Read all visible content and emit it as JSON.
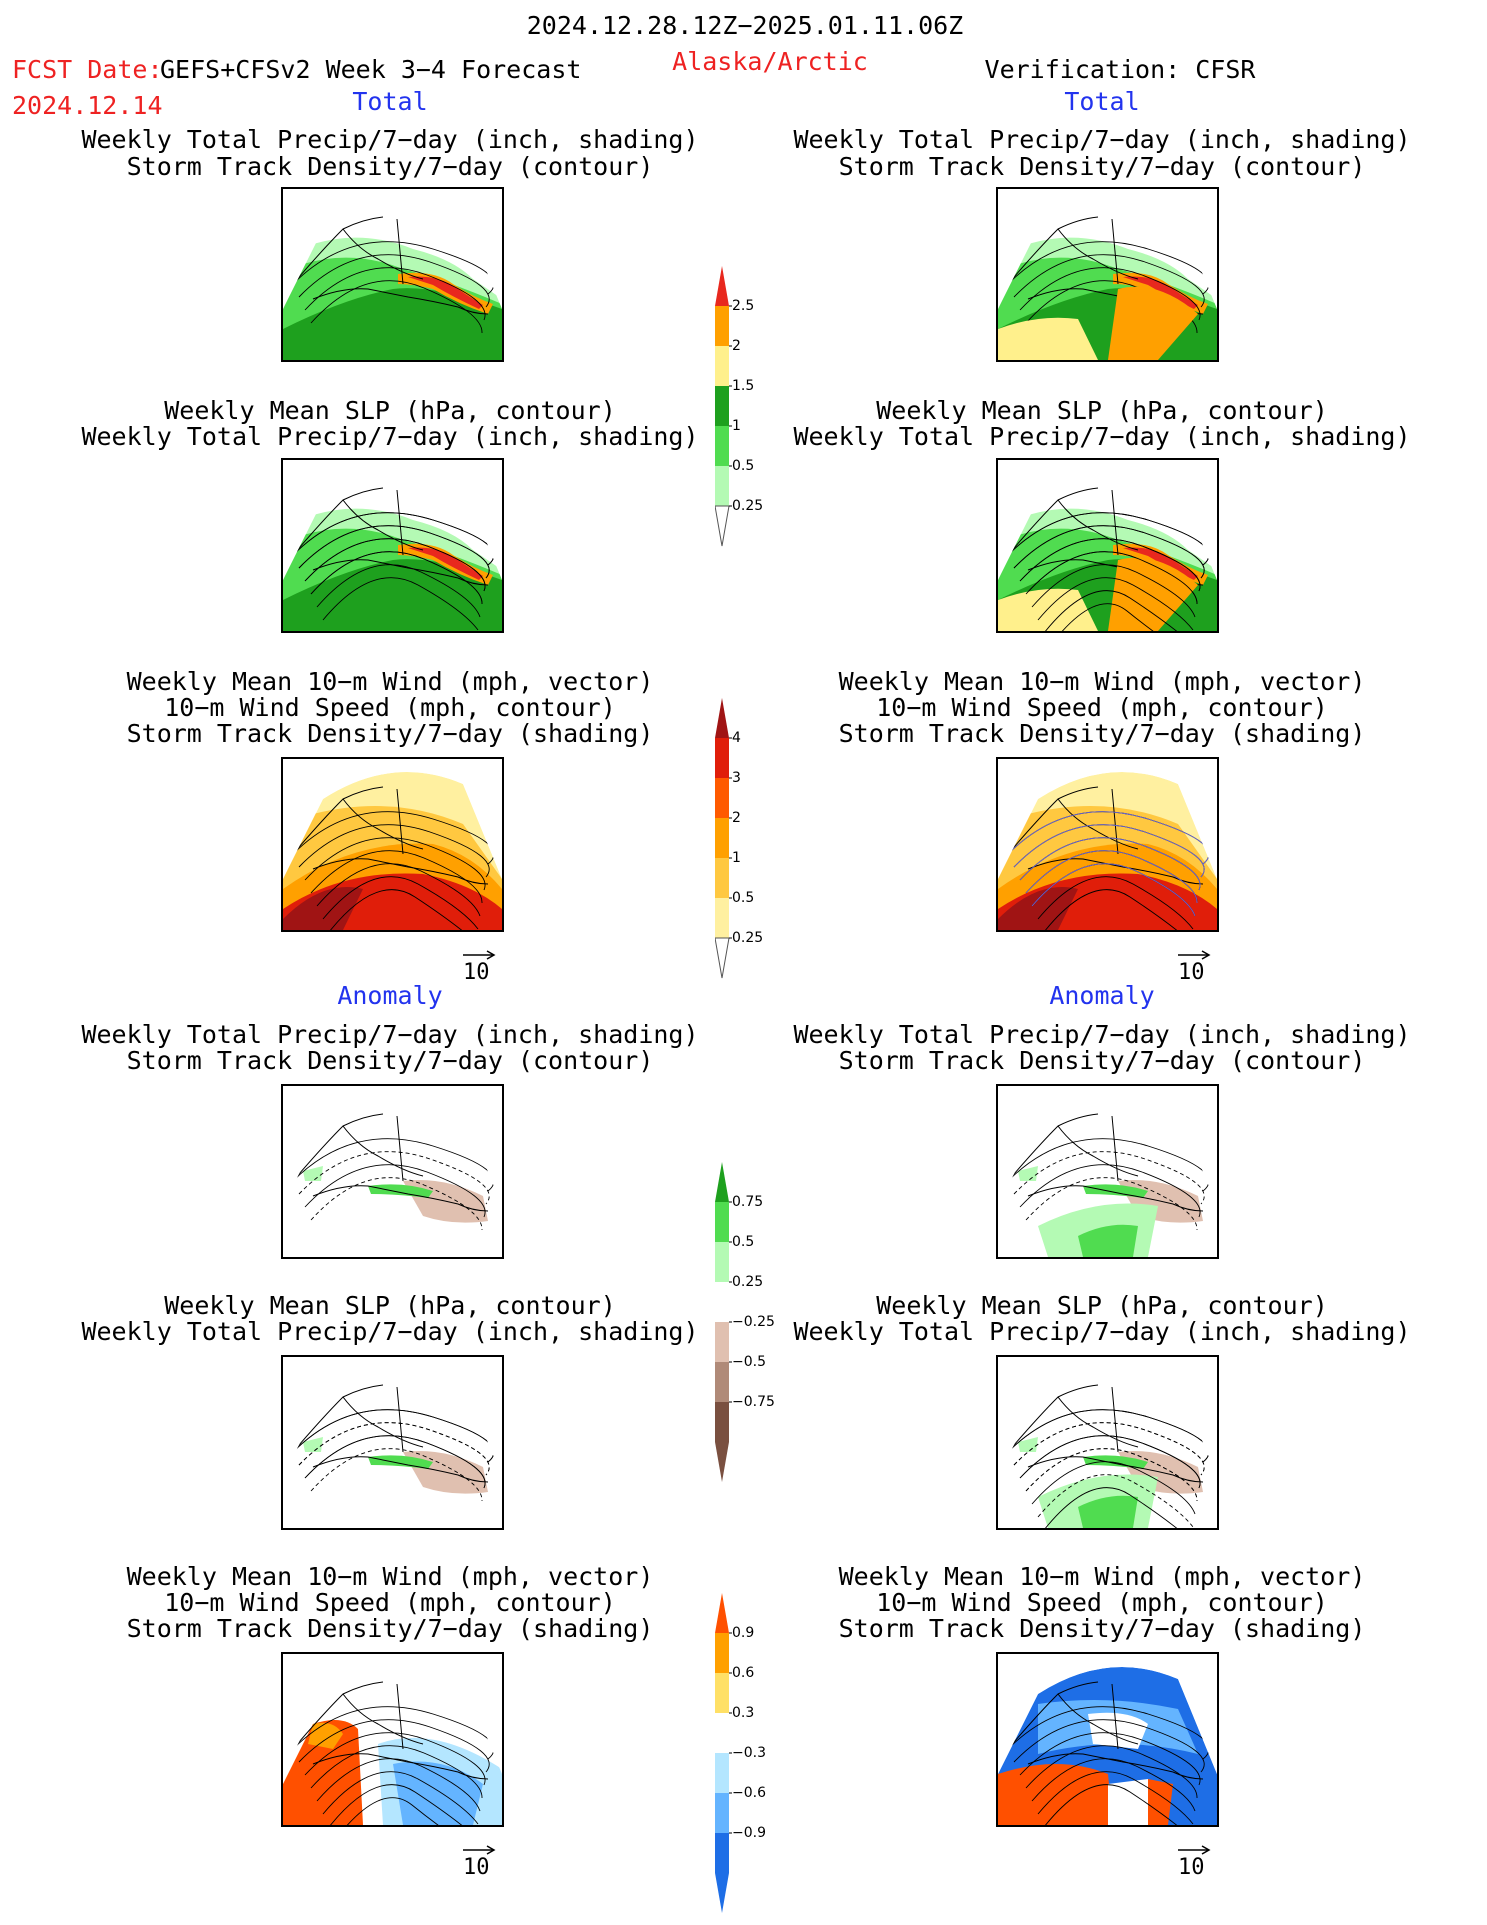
{
  "header": {
    "valid_period": "2024.12.28.12Z−2025.01.11.06Z",
    "fcst_label": "FCST Date:",
    "fcst_date": "2024.12.14",
    "model": "GEFS+CFSv2 Week 3−4 Forecast",
    "region": "Alaska/Arctic",
    "verification": "Verification: CFSR"
  },
  "sections": {
    "total": "Total",
    "anomaly": "Anomaly"
  },
  "titles": {
    "precip_storm": [
      "Weekly Total Precip/7−day (inch, shading)",
      "Storm Track Density/7−day (contour)"
    ],
    "slp_precip": [
      "Weekly Mean SLP (hPa, contour)",
      "Weekly Total Precip/7−day (inch, shading)"
    ],
    "wind_storm": [
      "Weekly Mean 10−m Wind (mph, vector)",
      "10−m Wind Speed (mph, contour)",
      "Storm Track Density/7−day (shading)"
    ]
  },
  "vector_ref": "10",
  "colorbars": {
    "precip_total": {
      "labels": [
        "2.5",
        "2",
        "1.5",
        "1",
        "0.5",
        "0.25"
      ],
      "colors": [
        "#e8281e",
        "#ffa000",
        "#fff08c",
        "#1ea01e",
        "#50dc50",
        "#b4fab4"
      ]
    },
    "storm_total": {
      "labels": [
        "4",
        "3",
        "2",
        "1",
        "0.5",
        "0.25"
      ],
      "colors": [
        "#a01414",
        "#e01e0a",
        "#ff5a00",
        "#ffa000",
        "#ffc840",
        "#fff0a0"
      ]
    },
    "precip_anom": {
      "labels": [
        "0.75",
        "0.5",
        "0.25",
        "−0.25",
        "−0.5",
        "−0.75"
      ],
      "colors": [
        "#1ea01e",
        "#50dc50",
        "#b4fab4",
        "#ffffff",
        "#e0c0b0",
        "#b08a78",
        "#7a5040"
      ]
    },
    "storm_anom": {
      "labels": [
        "0.9",
        "0.6",
        "0.3",
        "−0.3",
        "−0.6",
        "−0.9"
      ],
      "colors": [
        "#ff5000",
        "#ffa000",
        "#ffe066",
        "#ffffff",
        "#b4e6ff",
        "#64b4ff",
        "#1e6ee6"
      ]
    }
  }
}
